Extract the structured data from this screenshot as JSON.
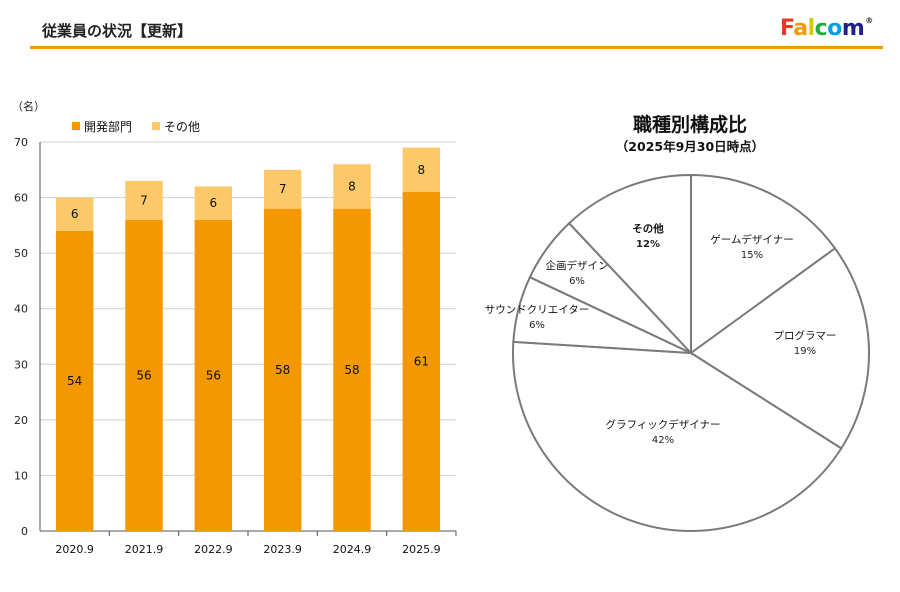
{
  "header": {
    "title": "従業員の状況【更新】",
    "logo": "Falcom",
    "logo_mark": "®",
    "accent_color": "#f39800"
  },
  "chart_data": [
    {
      "type": "bar",
      "stacked": true,
      "unit_label": "（名）",
      "categories": [
        "2020.9",
        "2021.9",
        "2022.9",
        "2023.9",
        "2024.9",
        "2025.9"
      ],
      "series": [
        {
          "name": "開発部門",
          "color": "#f39800",
          "values": [
            54,
            56,
            56,
            58,
            58,
            61
          ]
        },
        {
          "name": "その他",
          "color": "#fbc96a",
          "values": [
            6,
            7,
            6,
            7,
            8,
            8
          ]
        }
      ],
      "ylim": [
        0,
        70
      ],
      "yticks": [
        0,
        10,
        20,
        30,
        40,
        50,
        60,
        70
      ],
      "grid": true,
      "legend": "top-left"
    },
    {
      "type": "pie",
      "title": "職種別構成比",
      "subtitle": "（2025年9月30日時点）",
      "slices": [
        {
          "label": "ゲームデザイナー",
          "value": 15,
          "pct": "15%",
          "bold": false
        },
        {
          "label": "プログラマー",
          "value": 19,
          "pct": "19%",
          "bold": false
        },
        {
          "label": "グラフィックデザイナー",
          "value": 42,
          "pct": "42%",
          "bold": false
        },
        {
          "label": "サウンドクリエイター",
          "value": 6,
          "pct": "6%",
          "bold": false
        },
        {
          "label": "企画デザイン",
          "value": 6,
          "pct": "6%",
          "bold": false
        },
        {
          "label": "その他",
          "value": 12,
          "pct": "12%",
          "bold": true
        }
      ]
    }
  ]
}
